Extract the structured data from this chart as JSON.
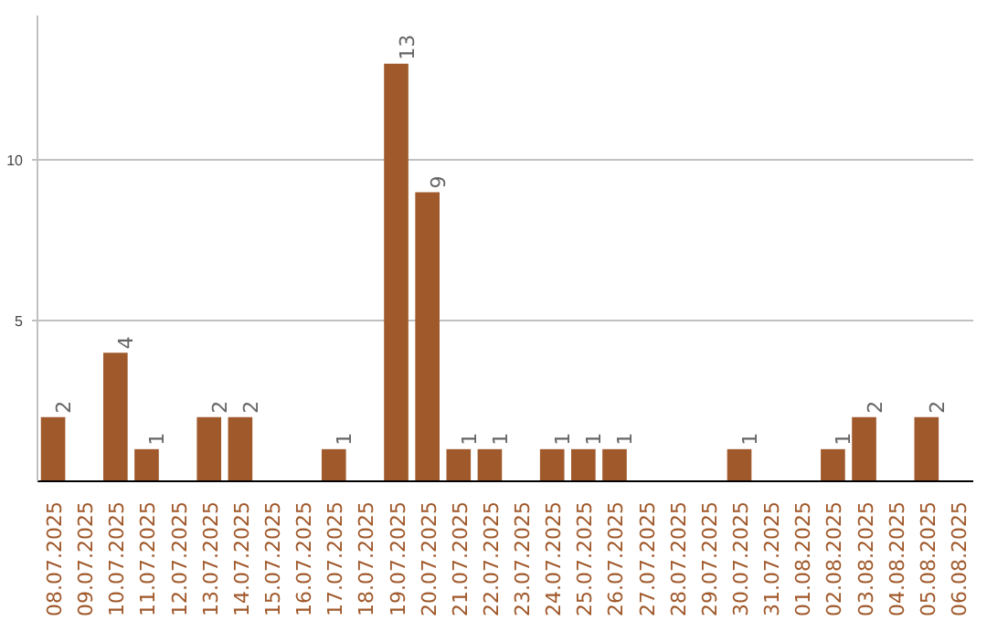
{
  "chart_data": {
    "type": "bar",
    "categories": [
      "08.07.2025",
      "09.07.2025",
      "10.07.2025",
      "11.07.2025",
      "12.07.2025",
      "13.07.2025",
      "14.07.2025",
      "15.07.2025",
      "16.07.2025",
      "17.07.2025",
      "18.07.2025",
      "19.07.2025",
      "20.07.2025",
      "21.07.2025",
      "22.07.2025",
      "23.07.2025",
      "24.07.2025",
      "25.07.2025",
      "26.07.2025",
      "27.07.2025",
      "28.07.2025",
      "29.07.2025",
      "30.07.2025",
      "31.07.2025",
      "01.08.2025",
      "02.08.2025",
      "03.08.2025",
      "04.08.2025",
      "05.08.2025",
      "06.08.2025"
    ],
    "values": [
      2,
      0,
      4,
      1,
      0,
      2,
      2,
      0,
      0,
      1,
      0,
      13,
      9,
      1,
      1,
      0,
      1,
      1,
      1,
      0,
      0,
      0,
      1,
      0,
      0,
      1,
      2,
      0,
      2,
      0
    ],
    "value_labels": [
      "2",
      null,
      "4",
      "1",
      null,
      "2",
      "2",
      null,
      null,
      "1",
      null,
      "13",
      "9",
      "1",
      "1",
      null,
      "1",
      "1",
      "1",
      null,
      null,
      null,
      "1",
      null,
      null,
      "1",
      "2",
      null,
      "2",
      null
    ],
    "color": "#a0592b",
    "ylim": [
      0,
      14.5
    ],
    "yticks": [
      5,
      10
    ],
    "grid": "y"
  }
}
